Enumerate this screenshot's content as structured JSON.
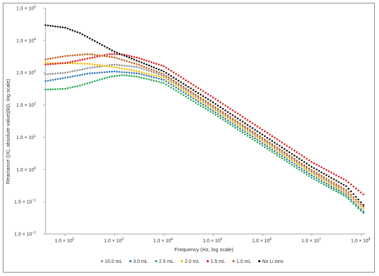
{
  "chart_data": {
    "type": "scatter",
    "title": "",
    "xlabel": "Frequency (Hz, log scale)",
    "ylabel": "Reactance (|X|, absolute value)(kΩ, log scale)",
    "x_scale": "log",
    "y_scale": "log",
    "xlim": [
      40,
      120000000
    ],
    "ylim": [
      0.01,
      100000
    ],
    "grid": false,
    "legend_position": "bottom",
    "x_ticks": [
      {
        "value": 100,
        "base": "1.0 × 10",
        "exp": "2"
      },
      {
        "value": 1000,
        "base": "1.0 × 10",
        "exp": "3"
      },
      {
        "value": 10000,
        "base": "1.0 × 10",
        "exp": "4"
      },
      {
        "value": 100000,
        "base": "1.0 × 10",
        "exp": "5"
      },
      {
        "value": 1000000,
        "base": "1.0 × 10",
        "exp": "6"
      },
      {
        "value": 10000000,
        "base": "1.0 × 10",
        "exp": "7"
      },
      {
        "value": 100000000,
        "base": "1.0 × 10",
        "exp": "8"
      }
    ],
    "y_ticks": [
      {
        "value": 100000,
        "base": "1.0 × 10",
        "exp": "5"
      },
      {
        "value": 10000,
        "base": "1.0 × 10",
        "exp": "4"
      },
      {
        "value": 1000,
        "base": "1.0 × 10",
        "exp": "3"
      },
      {
        "value": 100,
        "base": "1.0 × 10",
        "exp": "2"
      },
      {
        "value": 10,
        "base": "1.0 × 10",
        "exp": "1"
      },
      {
        "value": 1,
        "base": "1.0 × 10",
        "exp": "0"
      },
      {
        "value": 0.1,
        "base": "1.0 × 10",
        "exp": "−1"
      },
      {
        "value": 0.01,
        "base": "1.0 × 10",
        "exp": "−2"
      }
    ],
    "series": [
      {
        "name": "10.0 mL",
        "color": "#8c8c8c",
        "x": [
          40,
          100,
          300,
          1000,
          3000,
          10000,
          100000,
          1000000,
          10000000,
          50000000,
          110000000
        ],
        "y": [
          900,
          1000,
          1400,
          1800,
          1500,
          800,
          85,
          8.5,
          0.85,
          0.2,
          0.06
        ]
      },
      {
        "name": "3.0 mL",
        "color": "#2e75b6",
        "x": [
          40,
          100,
          300,
          1000,
          3000,
          10000,
          100000,
          1000000,
          10000000,
          50000000,
          110000000
        ],
        "y": [
          550,
          700,
          950,
          1100,
          950,
          600,
          65,
          6.5,
          0.65,
          0.16,
          0.05
        ]
      },
      {
        "name": "2.5 mL",
        "color": "#1fa84a",
        "x": [
          40,
          100,
          200,
          400,
          800,
          1500,
          3000,
          10000,
          100000,
          1000000,
          10000000,
          50000000,
          110000000
        ],
        "y": [
          300,
          320,
          400,
          550,
          750,
          850,
          750,
          480,
          55,
          5.5,
          0.55,
          0.14,
          0.045
        ]
      },
      {
        "name": "2.0 mL",
        "color": "#f5b800",
        "x": [
          40,
          100,
          300,
          1000,
          3000,
          10000,
          100000,
          1000000,
          10000000,
          50000000,
          110000000
        ],
        "y": [
          2000,
          2000,
          1900,
          1500,
          1100,
          700,
          75,
          7.5,
          0.75,
          0.18,
          0.06
        ]
      },
      {
        "name": "1.5 mL",
        "color": "#e01b1b",
        "x": [
          40,
          100,
          300,
          800,
          1500,
          3000,
          10000,
          100000,
          1000000,
          10000000,
          50000000,
          110000000
        ],
        "y": [
          1800,
          2000,
          2800,
          3800,
          3700,
          2900,
          1600,
          170,
          17,
          1.7,
          0.45,
          0.17
        ]
      },
      {
        "name": "1.0 mL",
        "color": "#c55a11",
        "x": [
          40,
          100,
          300,
          1000,
          3000,
          10000,
          100000,
          1000000,
          10000000,
          50000000,
          110000000
        ],
        "y": [
          2600,
          3300,
          3800,
          3000,
          1800,
          900,
          95,
          9.5,
          0.95,
          0.23,
          0.07
        ]
      },
      {
        "name": "No Li ions",
        "color": "#111111",
        "x": [
          40,
          100,
          200,
          500,
          1000,
          3000,
          10000,
          100000,
          1000000,
          10000000,
          50000000,
          110000000
        ],
        "y": [
          30000,
          25000,
          17000,
          8000,
          4500,
          2300,
          1100,
          120,
          12,
          1.2,
          0.3,
          0.08
        ]
      }
    ]
  }
}
